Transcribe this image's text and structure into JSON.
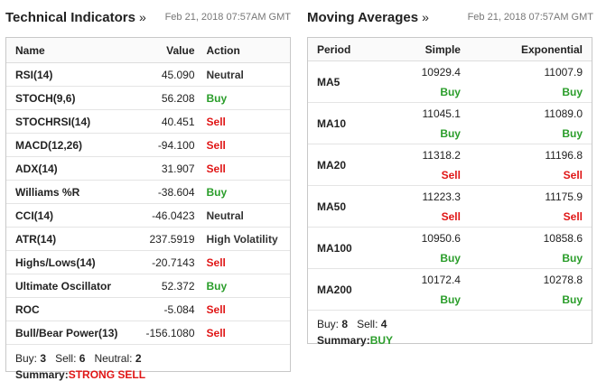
{
  "technical": {
    "title": "Technical Indicators",
    "arrow": "»",
    "date": "Feb 21, 2018 07:57AM GMT",
    "headers": {
      "name": "Name",
      "value": "Value",
      "action": "Action"
    },
    "rows": [
      {
        "name": "RSI(14)",
        "value": "45.090",
        "action": "Neutral",
        "kind": "neutral"
      },
      {
        "name": "STOCH(9,6)",
        "value": "56.208",
        "action": "Buy",
        "kind": "buy"
      },
      {
        "name": "STOCHRSI(14)",
        "value": "40.451",
        "action": "Sell",
        "kind": "sell"
      },
      {
        "name": "MACD(12,26)",
        "value": "-94.100",
        "action": "Sell",
        "kind": "sell"
      },
      {
        "name": "ADX(14)",
        "value": "31.907",
        "action": "Sell",
        "kind": "sell"
      },
      {
        "name": "Williams %R",
        "value": "-38.604",
        "action": "Buy",
        "kind": "buy"
      },
      {
        "name": "CCI(14)",
        "value": "-46.0423",
        "action": "Neutral",
        "kind": "neutral"
      },
      {
        "name": "ATR(14)",
        "value": "237.5919",
        "action": "High Volatility",
        "kind": "neutral"
      },
      {
        "name": "Highs/Lows(14)",
        "value": "-20.7143",
        "action": "Sell",
        "kind": "sell"
      },
      {
        "name": "Ultimate Oscillator",
        "value": "52.372",
        "action": "Buy",
        "kind": "buy"
      },
      {
        "name": "ROC",
        "value": "-5.084",
        "action": "Sell",
        "kind": "sell"
      },
      {
        "name": "Bull/Bear Power(13)",
        "value": "-156.1080",
        "action": "Sell",
        "kind": "sell"
      }
    ],
    "summary": {
      "buy_label": "Buy:",
      "buy_count": "3",
      "sell_label": "Sell:",
      "sell_count": "6",
      "neutral_label": "Neutral:",
      "neutral_count": "2",
      "summary_label": "Summary:",
      "summary_value": "STRONG SELL"
    }
  },
  "moving": {
    "title": "Moving Averages",
    "arrow": "»",
    "date": "Feb 21, 2018 07:57AM GMT",
    "headers": {
      "period": "Period",
      "simple": "Simple",
      "exponential": "Exponential"
    },
    "rows": [
      {
        "period": "MA5",
        "simple_value": "10929.4",
        "simple_action": "Buy",
        "simple_kind": "buy",
        "exp_value": "11007.9",
        "exp_action": "Buy",
        "exp_kind": "buy"
      },
      {
        "period": "MA10",
        "simple_value": "11045.1",
        "simple_action": "Buy",
        "simple_kind": "buy",
        "exp_value": "11089.0",
        "exp_action": "Buy",
        "exp_kind": "buy"
      },
      {
        "period": "MA20",
        "simple_value": "11318.2",
        "simple_action": "Sell",
        "simple_kind": "sell",
        "exp_value": "11196.8",
        "exp_action": "Sell",
        "exp_kind": "sell"
      },
      {
        "period": "MA50",
        "simple_value": "11223.3",
        "simple_action": "Sell",
        "simple_kind": "sell",
        "exp_value": "11175.9",
        "exp_action": "Sell",
        "exp_kind": "sell"
      },
      {
        "period": "MA100",
        "simple_value": "10950.6",
        "simple_action": "Buy",
        "simple_kind": "buy",
        "exp_value": "10858.6",
        "exp_action": "Buy",
        "exp_kind": "buy"
      },
      {
        "period": "MA200",
        "simple_value": "10172.4",
        "simple_action": "Buy",
        "simple_kind": "buy",
        "exp_value": "10278.8",
        "exp_action": "Buy",
        "exp_kind": "buy"
      }
    ],
    "summary": {
      "buy_label": "Buy:",
      "buy_count": "8",
      "sell_label": "Sell:",
      "sell_count": "4",
      "summary_label": "Summary:",
      "summary_value": "BUY"
    }
  },
  "colors": {
    "buy": "#2a9d2a",
    "sell": "#e01616",
    "neutral": "#333333"
  }
}
